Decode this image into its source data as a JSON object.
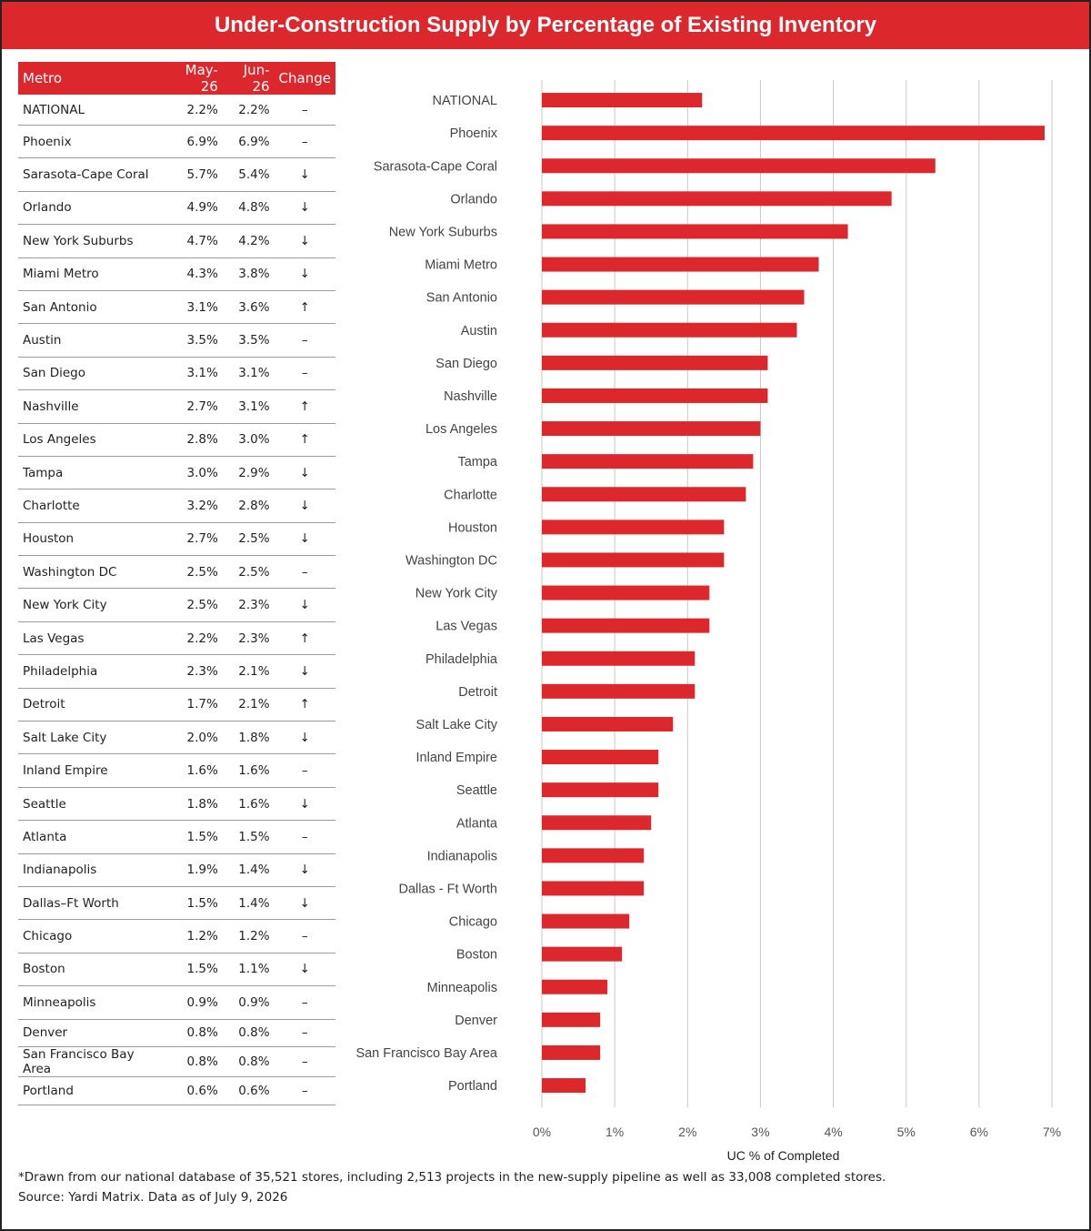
{
  "title": "Under-Construction Supply by Percentage of Existing Inventory",
  "table": {
    "headers": [
      "Metro",
      "May-26",
      "Jun-26",
      "Change"
    ],
    "rows": [
      {
        "metro": "NATIONAL",
        "may": "2.2%",
        "jun": "2.2%",
        "change": "–"
      },
      {
        "metro": "Phoenix",
        "may": "6.9%",
        "jun": "6.9%",
        "change": "–"
      },
      {
        "metro": "Sarasota-Cape Coral",
        "may": "5.7%",
        "jun": "5.4%",
        "change": "↓"
      },
      {
        "metro": "Orlando",
        "may": "4.9%",
        "jun": "4.8%",
        "change": "↓"
      },
      {
        "metro": "New York Suburbs",
        "may": "4.7%",
        "jun": "4.2%",
        "change": "↓"
      },
      {
        "metro": "Miami Metro",
        "may": "4.3%",
        "jun": "3.8%",
        "change": "↓"
      },
      {
        "metro": "San Antonio",
        "may": "3.1%",
        "jun": "3.6%",
        "change": "↑"
      },
      {
        "metro": "Austin",
        "may": "3.5%",
        "jun": "3.5%",
        "change": "–"
      },
      {
        "metro": "San Diego",
        "may": "3.1%",
        "jun": "3.1%",
        "change": "–"
      },
      {
        "metro": "Nashville",
        "may": "2.7%",
        "jun": "3.1%",
        "change": "↑"
      },
      {
        "metro": "Los Angeles",
        "may": "2.8%",
        "jun": "3.0%",
        "change": "↑"
      },
      {
        "metro": "Tampa",
        "may": "3.0%",
        "jun": "2.9%",
        "change": "↓"
      },
      {
        "metro": "Charlotte",
        "may": "3.2%",
        "jun": "2.8%",
        "change": "↓"
      },
      {
        "metro": "Houston",
        "may": "2.7%",
        "jun": "2.5%",
        "change": "↓"
      },
      {
        "metro": "Washington DC",
        "may": "2.5%",
        "jun": "2.5%",
        "change": "–"
      },
      {
        "metro": "New York City",
        "may": "2.5%",
        "jun": "2.3%",
        "change": "↓"
      },
      {
        "metro": "Las Vegas",
        "may": "2.2%",
        "jun": "2.3%",
        "change": "↑"
      },
      {
        "metro": "Philadelphia",
        "may": "2.3%",
        "jun": "2.1%",
        "change": "↓"
      },
      {
        "metro": "Detroit",
        "may": "1.7%",
        "jun": "2.1%",
        "change": "↑"
      },
      {
        "metro": "Salt Lake City",
        "may": "2.0%",
        "jun": "1.8%",
        "change": "↓"
      },
      {
        "metro": "Inland Empire",
        "may": "1.6%",
        "jun": "1.6%",
        "change": "–"
      },
      {
        "metro": "Seattle",
        "may": "1.8%",
        "jun": "1.6%",
        "change": "↓"
      },
      {
        "metro": "Atlanta",
        "may": "1.5%",
        "jun": "1.5%",
        "change": "–"
      },
      {
        "metro": "Indianapolis",
        "may": "1.9%",
        "jun": "1.4%",
        "change": "↓"
      },
      {
        "metro": "Dallas–Ft Worth",
        "may": "1.5%",
        "jun": "1.4%",
        "change": "↓"
      },
      {
        "metro": "Chicago",
        "may": "1.2%",
        "jun": "1.2%",
        "change": "–"
      },
      {
        "metro": "Boston",
        "may": "1.5%",
        "jun": "1.1%",
        "change": "↓"
      },
      {
        "metro": "Minneapolis",
        "may": "0.9%",
        "jun": "0.9%",
        "change": "–"
      },
      {
        "metro": "Denver",
        "may": "0.8%",
        "jun": "0.8%",
        "change": "–"
      },
      {
        "metro": "San Francisco Bay Area",
        "may": "0.8%",
        "jun": "0.8%",
        "change": "–"
      },
      {
        "metro": "Portland",
        "may": "0.6%",
        "jun": "0.6%",
        "change": "–"
      }
    ]
  },
  "chart_data": {
    "type": "bar",
    "orientation": "horizontal",
    "categories": [
      "NATIONAL",
      "Phoenix",
      "Sarasota-Cape Coral",
      "Orlando",
      "New York Suburbs",
      "Miami Metro",
      "San Antonio",
      "Austin",
      "San Diego",
      "Nashville",
      "Los Angeles",
      "Tampa",
      "Charlotte",
      "Houston",
      "Washington DC",
      "New York City",
      "Las Vegas",
      "Philadelphia",
      "Detroit",
      "Salt Lake City",
      "Inland Empire",
      "Seattle",
      "Atlanta",
      "Indianapolis",
      "Dallas - Ft Worth",
      "Chicago",
      "Boston",
      "Minneapolis",
      "Denver",
      "San Francisco Bay Area",
      "Portland"
    ],
    "values": [
      2.2,
      6.9,
      5.4,
      4.8,
      4.2,
      3.8,
      3.6,
      3.5,
      3.1,
      3.1,
      3.0,
      2.9,
      2.8,
      2.5,
      2.5,
      2.3,
      2.3,
      2.1,
      2.1,
      1.8,
      1.6,
      1.6,
      1.5,
      1.4,
      1.4,
      1.2,
      1.1,
      0.9,
      0.8,
      0.8,
      0.6
    ],
    "xlabel": "UC % of Completed",
    "ylabel": "",
    "xlim": [
      0,
      7
    ],
    "xticks": [
      "0%",
      "1%",
      "2%",
      "3%",
      "4%",
      "5%",
      "6%",
      "7%"
    ],
    "grid": true,
    "bar_color": "#dc282c",
    "grid_color": "#c8c8c8"
  },
  "footnote": {
    "line1": "*Drawn from our national database of 35,521 stores, including 2,513 projects in the new-supply pipeline as well as 33,008 completed stores.",
    "line2": "Source: Yardi Matrix. Data as of July 9, 2026"
  }
}
